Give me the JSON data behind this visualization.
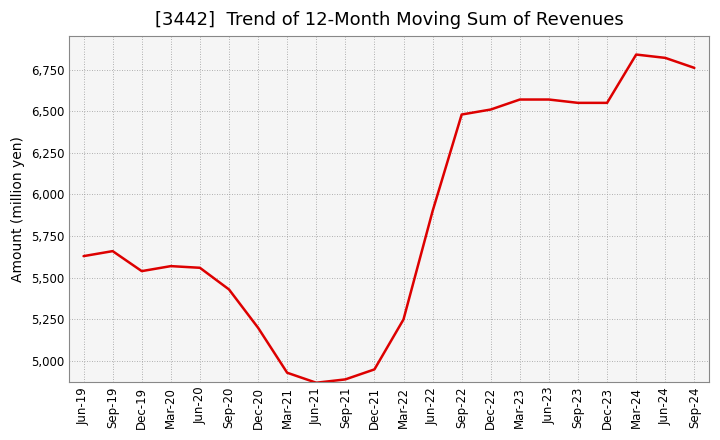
{
  "title": "[3442]  Trend of 12-Month Moving Sum of Revenues",
  "ylabel": "Amount (million yen)",
  "line_color": "#dd0000",
  "background_color": "#ffffff",
  "plot_bg_color": "#f5f5f5",
  "grid_color": "#999999",
  "x_labels": [
    "Jun-19",
    "Sep-19",
    "Dec-19",
    "Mar-20",
    "Jun-20",
    "Sep-20",
    "Dec-20",
    "Mar-21",
    "Jun-21",
    "Sep-21",
    "Dec-21",
    "Mar-22",
    "Jun-22",
    "Sep-22",
    "Dec-22",
    "Mar-23",
    "Jun-23",
    "Sep-23",
    "Dec-23",
    "Mar-24",
    "Jun-24",
    "Sep-24"
  ],
  "values": [
    5630,
    5660,
    5540,
    5570,
    5560,
    5430,
    5200,
    4930,
    4870,
    4890,
    4950,
    5250,
    5900,
    6480,
    6510,
    6570,
    6570,
    6550,
    6550,
    6840,
    6820,
    6760
  ],
  "ylim": [
    4875,
    6950
  ],
  "yticks": [
    5000,
    5250,
    5500,
    5750,
    6000,
    6250,
    6500,
    6750
  ],
  "title_fontsize": 13,
  "label_fontsize": 10,
  "tick_fontsize": 8.5
}
